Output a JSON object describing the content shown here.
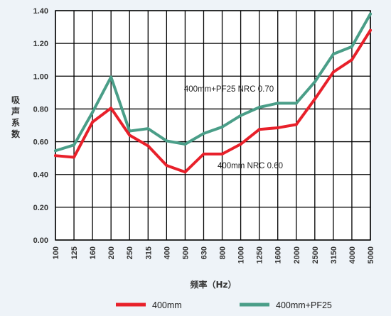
{
  "chart_data": {
    "type": "line",
    "ylabel": "吸声系数",
    "xlabel": "频率（Hz）",
    "ylim": [
      0,
      1.4
    ],
    "y_ticks": [
      "0.00",
      "0.20",
      "0.40",
      "0.60",
      "0.80",
      "1.00",
      "1.20",
      "1.40"
    ],
    "categories": [
      "100",
      "125",
      "160",
      "200",
      "250",
      "315",
      "400",
      "500",
      "630",
      "800",
      "1000",
      "1250",
      "1600",
      "2000",
      "2500",
      "3150",
      "4000",
      "5000"
    ],
    "series": [
      {
        "name": "400mm",
        "color": "#e8202a",
        "values": [
          0.515,
          0.505,
          0.72,
          0.805,
          0.64,
          0.575,
          0.455,
          0.415,
          0.525,
          0.525,
          0.585,
          0.675,
          0.685,
          0.705,
          0.86,
          1.025,
          1.1,
          1.28
        ]
      },
      {
        "name": "400mm+PF25",
        "color": "#4a9e88",
        "values": [
          0.545,
          0.58,
          0.78,
          0.995,
          0.665,
          0.68,
          0.605,
          0.585,
          0.65,
          0.69,
          0.76,
          0.81,
          0.835,
          0.835,
          0.965,
          1.135,
          1.18,
          1.38
        ]
      }
    ],
    "grid": true,
    "legend": "bottom",
    "annotations": [
      "400mm+PF25  NRC 0.70",
      "400mm  NRC 0.60"
    ]
  }
}
